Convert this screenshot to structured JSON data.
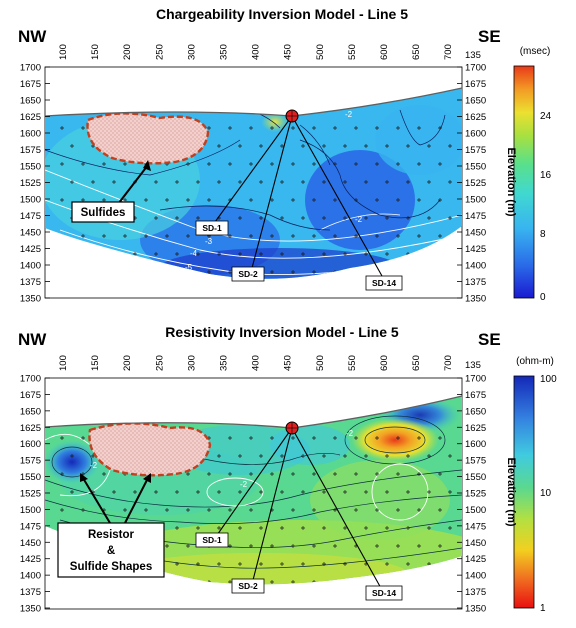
{
  "panels": [
    {
      "title": "Chargeability Inversion Model - Line 5",
      "left_label": "NW",
      "right_label": "SE",
      "x_ticks": [
        "100",
        "150",
        "200",
        "250",
        "300",
        "350",
        "400",
        "450",
        "500",
        "550",
        "600",
        "650",
        "700"
      ],
      "right_top_label": "135",
      "y_ticks": [
        "1700",
        "1675",
        "1650",
        "1625",
        "1600",
        "1575",
        "1550",
        "1525",
        "1500",
        "1475",
        "1450",
        "1425",
        "1400",
        "1375",
        "1350"
      ],
      "elevation_label": "Elevation (m)",
      "colorbar_unit": "(msec)",
      "colorbar_ticks": [
        "24",
        "16",
        "8",
        "0"
      ],
      "callout": [
        "Sulfides"
      ],
      "holes": [
        "SD-1",
        "SD-2",
        "SD-14"
      ],
      "contour_labels": [
        "-2",
        "-3",
        "-4",
        "-5",
        "-2"
      ]
    },
    {
      "title": "Resistivity Inversion Model - Line 5",
      "left_label": "NW",
      "right_label": "SE",
      "x_ticks": [
        "100",
        "150",
        "200",
        "250",
        "300",
        "350",
        "400",
        "450",
        "500",
        "550",
        "600",
        "650",
        "700"
      ],
      "right_top_label": "135",
      "y_ticks": [
        "1700",
        "1675",
        "1650",
        "1625",
        "1600",
        "1575",
        "1550",
        "1525",
        "1500",
        "1475",
        "1450",
        "1425",
        "1400",
        "1375",
        "1350"
      ],
      "elevation_label": "Elevation (m)",
      "colorbar_unit": "(ohm-m)",
      "colorbar_ticks": [
        "100",
        "10",
        "1"
      ],
      "callout": [
        "Resistor",
        "&",
        "Sulfide Shapes"
      ],
      "holes": [
        "SD-1",
        "SD-2",
        "SD-14"
      ],
      "contour_labels": [
        "-2",
        "-2",
        "-2"
      ]
    }
  ],
  "colors": {
    "chargeability_ramp": [
      "#2a2ad8",
      "#2f8df0",
      "#3fd0e6",
      "#4fe0a0",
      "#9fe040",
      "#e8e030",
      "#f2a020",
      "#e8401c"
    ],
    "resistivity_ramp": [
      "#e01010",
      "#f07020",
      "#f0d020",
      "#b8e040",
      "#50d8a0",
      "#40c8e0",
      "#3080e0",
      "#1830c0"
    ],
    "sulfide_outline": "#c04020",
    "collar": "#e02020"
  }
}
